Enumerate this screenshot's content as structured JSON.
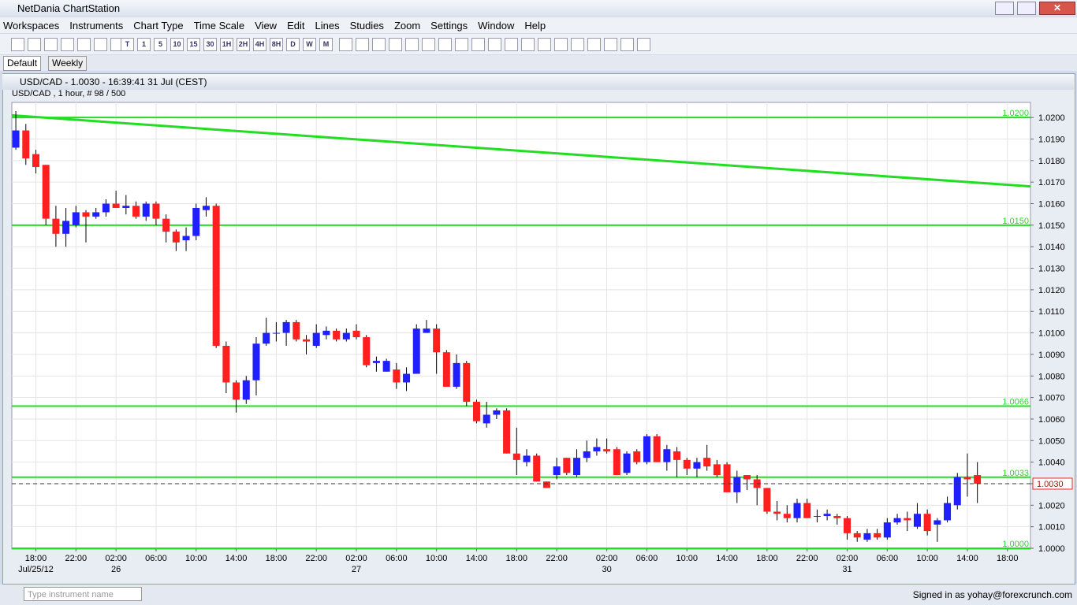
{
  "window_title": "NetDania ChartStation",
  "menu": [
    "Workspaces",
    "Instruments",
    "Chart Type",
    "Time Scale",
    "View",
    "Edit",
    "Lines",
    "Studies",
    "Zoom",
    "Settings",
    "Window",
    "Help"
  ],
  "toolbar_periods": [
    "T",
    "1",
    "5",
    "10",
    "15",
    "30",
    "1H",
    "2H",
    "4H",
    "8H",
    "D",
    "W",
    "M"
  ],
  "tabs": [
    "Default",
    "Weekly"
  ],
  "chart_window_title": "USD/CAD - 1.0030 - 16:39:41  31 Jul (CEST)",
  "instrument_input_placeholder": "Type instrument name",
  "status": "Signed in as yohay@forexcrunch.com",
  "chart_data": {
    "type": "candlestick",
    "subtitle": "USD/CAD , 1 hour, # 98 / 500",
    "up_color": "#1f1fff",
    "down_color": "#ff1f1f",
    "level_color": "#22dd22",
    "candles": [
      [
        1.0186,
        1.0203,
        1.0185,
        1.0194
      ],
      [
        1.0194,
        1.0197,
        1.0178,
        1.0181
      ],
      [
        1.0183,
        1.0185,
        1.0174,
        1.0177
      ],
      [
        1.0178,
        1.0178,
        1.015,
        1.0153
      ],
      [
        1.0153,
        1.0159,
        1.014,
        1.0146
      ],
      [
        1.0146,
        1.0158,
        1.014,
        1.0152
      ],
      [
        1.015,
        1.0159,
        1.0149,
        1.0156
      ],
      [
        1.0156,
        1.0157,
        1.0142,
        1.0154
      ],
      [
        1.0154,
        1.0158,
        1.0153,
        1.0156
      ],
      [
        1.0156,
        1.0162,
        1.0154,
        1.016
      ],
      [
        1.016,
        1.0166,
        1.0158,
        1.0158
      ],
      [
        1.0158,
        1.0164,
        1.0155,
        1.0159
      ],
      [
        1.0159,
        1.0161,
        1.0153,
        1.0154
      ],
      [
        1.0154,
        1.0161,
        1.0152,
        1.016
      ],
      [
        1.016,
        1.0161,
        1.015,
        1.0153
      ],
      [
        1.0153,
        1.0155,
        1.0142,
        1.0147
      ],
      [
        1.0147,
        1.0148,
        1.0138,
        1.0142
      ],
      [
        1.0143,
        1.0149,
        1.0138,
        1.0145
      ],
      [
        1.0145,
        1.016,
        1.0143,
        1.0158
      ],
      [
        1.0157,
        1.0163,
        1.0154,
        1.0159
      ],
      [
        1.0159,
        1.016,
        1.0093,
        1.0094
      ],
      [
        1.0094,
        1.0096,
        1.0072,
        1.0077
      ],
      [
        1.0077,
        1.0078,
        1.0063,
        1.0069
      ],
      [
        1.0069,
        1.008,
        1.0067,
        1.0078
      ],
      [
        1.0078,
        1.0098,
        1.0071,
        1.0095
      ],
      [
        1.0095,
        1.0107,
        1.0094,
        1.01
      ],
      [
        1.01,
        1.0105,
        1.0096,
        1.01
      ],
      [
        1.01,
        1.0106,
        1.0094,
        1.0105
      ],
      [
        1.0105,
        1.0106,
        1.0096,
        1.0097
      ],
      [
        1.0097,
        1.0099,
        1.009,
        1.0096
      ],
      [
        1.0094,
        1.0104,
        1.0093,
        1.01
      ],
      [
        1.0099,
        1.0103,
        1.0097,
        1.0101
      ],
      [
        1.0101,
        1.0102,
        1.0096,
        1.0097
      ],
      [
        1.0097,
        1.0102,
        1.0096,
        1.01
      ],
      [
        1.0101,
        1.0104,
        1.0097,
        1.0098
      ],
      [
        1.0098,
        1.0099,
        1.0084,
        1.0085
      ],
      [
        1.0086,
        1.0089,
        1.0082,
        1.0087
      ],
      [
        1.0082,
        1.0088,
        1.0082,
        1.0087
      ],
      [
        1.0083,
        1.0086,
        1.0074,
        1.0077
      ],
      [
        1.0077,
        1.0084,
        1.0073,
        1.0081
      ],
      [
        1.0081,
        1.0104,
        1.0081,
        1.0102
      ],
      [
        1.01,
        1.0106,
        1.01,
        1.0102
      ],
      [
        1.0102,
        1.0104,
        1.0081,
        1.0091
      ],
      [
        1.0091,
        1.0092,
        1.0075,
        1.0075
      ],
      [
        1.0075,
        1.009,
        1.0074,
        1.0086
      ],
      [
        1.0086,
        1.0087,
        1.0066,
        1.0068
      ],
      [
        1.0068,
        1.0069,
        1.0058,
        1.0059
      ],
      [
        1.0058,
        1.0068,
        1.0056,
        1.0062
      ],
      [
        1.0062,
        1.0065,
        1.006,
        1.0064
      ],
      [
        1.0064,
        1.0065,
        1.0044,
        1.0044
      ],
      [
        1.0044,
        1.0056,
        1.0034,
        1.0041
      ],
      [
        1.004,
        1.0046,
        1.0038,
        1.0043
      ],
      [
        1.0043,
        1.0044,
        1.0031,
        1.0031
      ],
      [
        1.0031,
        1.0031,
        1.0028,
        1.0028
      ],
      [
        1.0034,
        1.0042,
        1.0032,
        1.0038
      ],
      [
        1.0042,
        1.0042,
        1.0034,
        1.0035
      ],
      [
        1.0034,
        1.0046,
        1.0033,
        1.0042
      ],
      [
        1.0042,
        1.005,
        1.004,
        1.0045
      ],
      [
        1.0045,
        1.0051,
        1.0043,
        1.0047
      ],
      [
        1.0046,
        1.0051,
        1.0044,
        1.0045
      ],
      [
        1.0046,
        1.0047,
        1.0034,
        1.0034
      ],
      [
        1.0035,
        1.0045,
        1.0034,
        1.0044
      ],
      [
        1.0045,
        1.0046,
        1.0039,
        1.004
      ],
      [
        1.004,
        1.0053,
        1.0039,
        1.0052
      ],
      [
        1.0052,
        1.0053,
        1.004,
        1.004
      ],
      [
        1.004,
        1.0048,
        1.0036,
        1.0046
      ],
      [
        1.0045,
        1.0047,
        1.0033,
        1.0041
      ],
      [
        1.0041,
        1.0042,
        1.0034,
        1.0037
      ],
      [
        1.0037,
        1.0042,
        1.0033,
        1.004
      ],
      [
        1.0042,
        1.0048,
        1.0036,
        1.0038
      ],
      [
        1.0039,
        1.0041,
        1.0033,
        1.0034
      ],
      [
        1.0039,
        1.004,
        1.0026,
        1.0026
      ],
      [
        1.0026,
        1.0036,
        1.0021,
        1.0033
      ],
      [
        1.0034,
        1.0034,
        1.0027,
        1.0032
      ],
      [
        1.0032,
        1.0034,
        1.002,
        1.0028
      ],
      [
        1.0028,
        1.0028,
        1.0016,
        1.0017
      ],
      [
        1.0017,
        1.0022,
        1.0013,
        1.0016
      ],
      [
        1.0016,
        1.002,
        1.0012,
        1.0014
      ],
      [
        1.0014,
        1.0023,
        1.0012,
        1.0021
      ],
      [
        1.0021,
        1.0023,
        1.0014,
        1.0014
      ],
      [
        1.0015,
        1.0018,
        1.0012,
        1.0015
      ],
      [
        1.0015,
        1.0018,
        1.0013,
        1.0016
      ],
      [
        1.0015,
        1.0016,
        1.0011,
        1.0014
      ],
      [
        1.0014,
        1.0015,
        1.0004,
        1.0007
      ],
      [
        1.0007,
        1.0008,
        1.0003,
        1.0005
      ],
      [
        1.0004,
        1.0009,
        1.0003,
        1.0007
      ],
      [
        1.0007,
        1.0009,
        1.0004,
        1.0005
      ],
      [
        1.0005,
        1.0014,
        1.0004,
        1.0012
      ],
      [
        1.0012,
        1.0016,
        1.0011,
        1.0014
      ],
      [
        1.0014,
        1.0017,
        1.0008,
        1.0013
      ],
      [
        1.001,
        1.0021,
        1.0009,
        1.0016
      ],
      [
        1.0016,
        1.0018,
        1.0006,
        1.0008
      ],
      [
        1.0011,
        1.0014,
        1.0003,
        1.0013
      ],
      [
        1.0013,
        1.0024,
        1.0012,
        1.0021
      ],
      [
        1.002,
        1.0035,
        1.0018,
        1.0033
      ],
      [
        1.0033,
        1.0044,
        1.0024,
        1.0032
      ],
      [
        1.0034,
        1.004,
        1.0021,
        1.003
      ]
    ],
    "xlim": [
      -0.4,
      101.3
    ],
    "xticks": [
      {
        "value": 2,
        "label": "18:00"
      },
      {
        "value": 6,
        "label": "22:00"
      },
      {
        "value": 10,
        "label": "02:00"
      },
      {
        "value": 14,
        "label": "06:00"
      },
      {
        "value": 18,
        "label": "10:00"
      },
      {
        "value": 22,
        "label": "14:00"
      },
      {
        "value": 26,
        "label": "18:00"
      },
      {
        "value": 30,
        "label": "22:00"
      },
      {
        "value": 34,
        "label": "02:00"
      },
      {
        "value": 38,
        "label": "06:00"
      },
      {
        "value": 42,
        "label": "10:00"
      },
      {
        "value": 46,
        "label": "14:00"
      },
      {
        "value": 50,
        "label": "18:00"
      },
      {
        "value": 54,
        "label": "22:00"
      },
      {
        "value": 59,
        "label": "02:00"
      },
      {
        "value": 63,
        "label": "06:00"
      },
      {
        "value": 67,
        "label": "10:00"
      },
      {
        "value": 71,
        "label": "14:00"
      },
      {
        "value": 75,
        "label": "18:00"
      },
      {
        "value": 79,
        "label": "22:00"
      },
      {
        "value": 83,
        "label": "02:00"
      },
      {
        "value": 87,
        "label": "06:00"
      },
      {
        "value": 91,
        "label": "10:00"
      },
      {
        "value": 95,
        "label": "14:00"
      },
      {
        "value": 99,
        "label": "18:00"
      }
    ],
    "xdates": [
      {
        "value": 2,
        "label": "Jul/25/12"
      },
      {
        "value": 10,
        "label": "26"
      },
      {
        "value": 34,
        "label": "27"
      },
      {
        "value": 59,
        "label": "30"
      },
      {
        "value": 83,
        "label": "31"
      }
    ],
    "ylim": [
      1.0,
      1.0207
    ],
    "yticks": [
      {
        "value": 1.0,
        "label": "1.0000"
      },
      {
        "value": 1.001,
        "label": "1.0010"
      },
      {
        "value": 1.002,
        "label": "1.0020"
      },
      {
        "value": 1.003,
        "label": "1.0030"
      },
      {
        "value": 1.004,
        "label": "1.0040"
      },
      {
        "value": 1.005,
        "label": "1.0050"
      },
      {
        "value": 1.006,
        "label": "1.0060"
      },
      {
        "value": 1.007,
        "label": "1.0070"
      },
      {
        "value": 1.008,
        "label": "1.0080"
      },
      {
        "value": 1.009,
        "label": "1.0090"
      },
      {
        "value": 1.01,
        "label": "1.0100"
      },
      {
        "value": 1.011,
        "label": "1.0110"
      },
      {
        "value": 1.012,
        "label": "1.0120"
      },
      {
        "value": 1.013,
        "label": "1.0130"
      },
      {
        "value": 1.014,
        "label": "1.0140"
      },
      {
        "value": 1.015,
        "label": "1.0150"
      },
      {
        "value": 1.016,
        "label": "1.0160"
      },
      {
        "value": 1.017,
        "label": "1.0170"
      },
      {
        "value": 1.018,
        "label": "1.0180"
      },
      {
        "value": 1.019,
        "label": "1.0190"
      },
      {
        "value": 1.02,
        "label": "1.0200"
      }
    ],
    "levels": [
      {
        "value": 1.02,
        "label": "1.0200"
      },
      {
        "value": 1.015,
        "label": "1.0150"
      },
      {
        "value": 1.0066,
        "label": "1.0066"
      },
      {
        "value": 1.0033,
        "label": "1.0033"
      },
      {
        "value": 1.0,
        "label": "1.0000"
      }
    ],
    "trendline": [
      1.0201,
      1.0168
    ],
    "last_price": {
      "value": 1.003,
      "label": "1.0030"
    },
    "grid": true
  }
}
